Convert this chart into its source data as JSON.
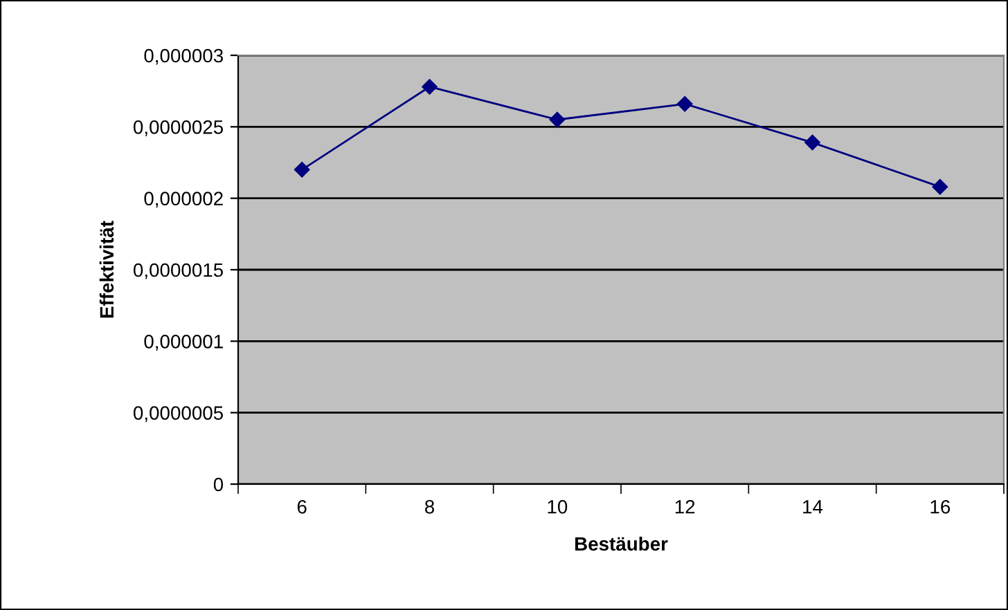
{
  "chart_data": {
    "type": "line",
    "xlabel": "Bestäuber",
    "ylabel": "Effektivität",
    "categories": [
      "6",
      "8",
      "10",
      "12",
      "14",
      "16"
    ],
    "series": [
      {
        "color": "#000080",
        "values": [
          2.2e-06,
          2.78e-06,
          2.55e-06,
          2.66e-06,
          2.39e-06,
          2.08e-06
        ]
      }
    ],
    "ylim": [
      0,
      3e-06
    ],
    "yticks": [
      {
        "value": 0,
        "label": "0"
      },
      {
        "value": 5e-07,
        "label": "0,0000005"
      },
      {
        "value": 1e-06,
        "label": "0,000001"
      },
      {
        "value": 1.5e-06,
        "label": "0,0000015"
      },
      {
        "value": 2e-06,
        "label": "0,000002"
      },
      {
        "value": 2.5e-06,
        "label": "0,0000025"
      },
      {
        "value": 3e-06,
        "label": "0,000003"
      }
    ],
    "grid": "y",
    "marker": "diamond",
    "line_style": "solid",
    "legend": false
  }
}
